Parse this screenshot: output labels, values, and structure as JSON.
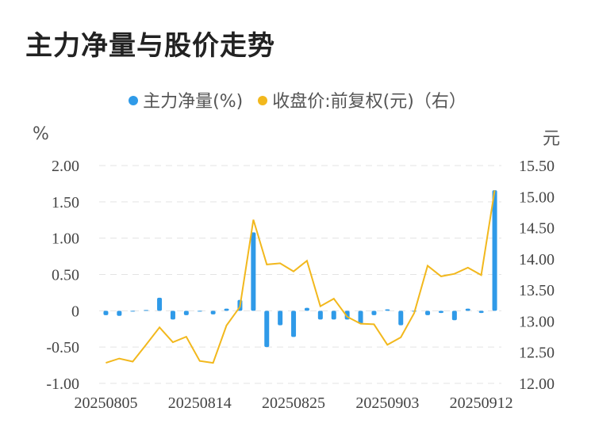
{
  "title": "主力净量与股价走势",
  "legend": {
    "series1": "主力净量(%)",
    "series2": "收盘价:前复权(元)（右）"
  },
  "units": {
    "left": "%",
    "right": "元"
  },
  "colors": {
    "bar": "#2f9ae8",
    "line": "#f2b81d",
    "grid": "#e3e3e3"
  },
  "chart_data": {
    "type": "bar+line",
    "y_left_ticks": [
      "2.00",
      "1.50",
      "1.00",
      "0.50",
      "0",
      "-0.50",
      "-1.00"
    ],
    "y_left_range": [
      -1.0,
      2.0
    ],
    "y_right_ticks": [
      "15.50",
      "15.00",
      "14.50",
      "14.00",
      "13.50",
      "13.00",
      "12.50",
      "12.00"
    ],
    "y_right_range": [
      12.0,
      15.5
    ],
    "x_tick_labels": [
      "20250805",
      "20250814",
      "20250825",
      "20250903",
      "20250912"
    ],
    "x_tick_indices": [
      0,
      7,
      14,
      21,
      28
    ],
    "series": [
      {
        "name": "主力净量(%)",
        "type": "bar",
        "values": [
          -0.06,
          -0.07,
          -0.01,
          0.01,
          0.18,
          -0.12,
          -0.06,
          -0.01,
          -0.05,
          0.03,
          0.15,
          1.08,
          -0.5,
          -0.2,
          -0.36,
          0.04,
          -0.12,
          -0.12,
          -0.12,
          -0.18,
          -0.06,
          0.02,
          -0.2,
          -0.01,
          -0.06,
          -0.03,
          -0.13,
          0.03,
          -0.03,
          1.66
        ]
      },
      {
        "name": "收盘价:前复权(元)（右）",
        "type": "line",
        "values": [
          12.33,
          12.4,
          12.35,
          12.62,
          12.9,
          12.66,
          12.75,
          12.36,
          12.33,
          12.93,
          13.23,
          14.63,
          13.91,
          13.93,
          13.8,
          13.97,
          13.24,
          13.36,
          13.07,
          12.96,
          12.95,
          12.62,
          12.74,
          13.13,
          13.89,
          13.72,
          13.76,
          13.86,
          13.74,
          15.1
        ]
      }
    ]
  }
}
